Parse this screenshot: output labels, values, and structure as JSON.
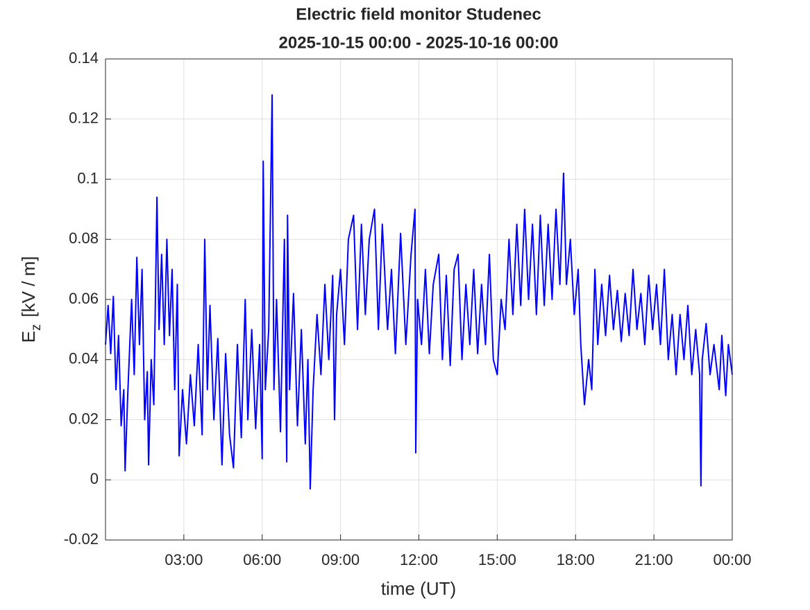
{
  "chart_data": {
    "type": "line",
    "title": [
      "Electric field monitor Studenec",
      "2025-10-15 00:00 - 2025-10-16 00:00"
    ],
    "xlabel": "time (UT)",
    "ylabel": {
      "base": "E",
      "subscript": "z",
      "rest": "[kV / m]"
    },
    "xlim": [
      0,
      24
    ],
    "xticks": [
      {
        "value": 3,
        "label": "03:00"
      },
      {
        "value": 6,
        "label": "06:00"
      },
      {
        "value": 9,
        "label": "09:00"
      },
      {
        "value": 12,
        "label": "12:00"
      },
      {
        "value": 15,
        "label": "15:00"
      },
      {
        "value": 18,
        "label": "18:00"
      },
      {
        "value": 21,
        "label": "21:00"
      },
      {
        "value": 24,
        "label": "00:00"
      }
    ],
    "ylim": [
      -0.02,
      0.14
    ],
    "yticks": [
      -0.02,
      0,
      0.02,
      0.04,
      0.06,
      0.08,
      0.1,
      0.12,
      0.14
    ],
    "grid": true,
    "x": [
      0,
      0.1,
      0.2,
      0.3,
      0.4,
      0.5,
      0.6,
      0.7,
      0.75,
      0.85,
      1.0,
      1.1,
      1.2,
      1.3,
      1.4,
      1.5,
      1.6,
      1.65,
      1.75,
      1.85,
      1.97,
      2.05,
      2.15,
      2.25,
      2.35,
      2.45,
      2.55,
      2.65,
      2.75,
      2.82,
      2.95,
      3.1,
      3.25,
      3.4,
      3.55,
      3.7,
      3.8,
      3.9,
      4.0,
      4.15,
      4.3,
      4.46,
      4.6,
      4.75,
      4.9,
      5.05,
      5.2,
      5.35,
      5.45,
      5.6,
      5.75,
      5.9,
      6.0,
      6.04,
      6.12,
      6.25,
      6.38,
      6.45,
      6.55,
      6.7,
      6.85,
      6.94,
      6.97,
      7.05,
      7.2,
      7.35,
      7.5,
      7.65,
      7.75,
      7.84,
      7.95,
      8.1,
      8.25,
      8.4,
      8.55,
      8.7,
      8.77,
      8.85,
      9.0,
      9.15,
      9.3,
      9.5,
      9.65,
      9.8,
      9.95,
      10.1,
      10.3,
      10.45,
      10.6,
      10.8,
      10.95,
      11.1,
      11.3,
      11.5,
      11.7,
      11.85,
      11.88,
      11.95,
      12.1,
      12.25,
      12.4,
      12.55,
      12.76,
      12.9,
      13.05,
      13.2,
      13.35,
      13.5,
      13.65,
      13.8,
      13.95,
      14.1,
      14.25,
      14.4,
      14.55,
      14.7,
      14.85,
      15.0,
      15.15,
      15.3,
      15.45,
      15.6,
      15.75,
      15.9,
      16.05,
      16.2,
      16.35,
      16.5,
      16.65,
      16.8,
      16.95,
      17.1,
      17.25,
      17.4,
      17.54,
      17.65,
      17.8,
      17.95,
      18.1,
      18.2,
      18.34,
      18.5,
      18.62,
      18.74,
      18.85,
      19.0,
      19.15,
      19.3,
      19.45,
      19.6,
      19.75,
      19.9,
      20.05,
      20.2,
      20.35,
      20.5,
      20.65,
      20.8,
      20.95,
      21.1,
      21.25,
      21.4,
      21.55,
      21.7,
      21.85,
      22.0,
      22.15,
      22.3,
      22.45,
      22.6,
      22.75,
      22.8,
      22.85,
      23.0,
      23.15,
      23.3,
      23.5,
      23.6,
      23.75,
      23.85,
      24.0
    ],
    "series": [
      {
        "color": "#0000ff",
        "values": [
          0.045,
          0.058,
          0.042,
          0.061,
          0.03,
          0.048,
          0.018,
          0.03,
          0.003,
          0.028,
          0.06,
          0.035,
          0.074,
          0.045,
          0.07,
          0.02,
          0.036,
          0.005,
          0.04,
          0.025,
          0.094,
          0.05,
          0.075,
          0.045,
          0.08,
          0.048,
          0.07,
          0.03,
          0.065,
          0.008,
          0.03,
          0.012,
          0.035,
          0.018,
          0.045,
          0.015,
          0.08,
          0.03,
          0.058,
          0.02,
          0.047,
          0.005,
          0.042,
          0.015,
          0.004,
          0.045,
          0.014,
          0.06,
          0.02,
          0.05,
          0.017,
          0.045,
          0.007,
          0.106,
          0.03,
          0.05,
          0.128,
          0.03,
          0.06,
          0.016,
          0.08,
          0.006,
          0.088,
          0.03,
          0.062,
          0.018,
          0.05,
          0.012,
          0.04,
          -0.003,
          0.03,
          0.055,
          0.035,
          0.065,
          0.04,
          0.068,
          0.02,
          0.055,
          0.07,
          0.045,
          0.08,
          0.088,
          0.05,
          0.085,
          0.055,
          0.08,
          0.09,
          0.05,
          0.085,
          0.05,
          0.07,
          0.042,
          0.082,
          0.045,
          0.075,
          0.09,
          0.009,
          0.06,
          0.045,
          0.07,
          0.042,
          0.065,
          0.075,
          0.04,
          0.068,
          0.038,
          0.07,
          0.075,
          0.04,
          0.065,
          0.045,
          0.07,
          0.042,
          0.065,
          0.045,
          0.075,
          0.04,
          0.035,
          0.06,
          0.05,
          0.08,
          0.055,
          0.085,
          0.058,
          0.09,
          0.06,
          0.085,
          0.055,
          0.088,
          0.058,
          0.085,
          0.06,
          0.09,
          0.065,
          0.102,
          0.065,
          0.08,
          0.055,
          0.07,
          0.045,
          0.025,
          0.04,
          0.03,
          0.07,
          0.045,
          0.065,
          0.048,
          0.068,
          0.05,
          0.063,
          0.046,
          0.062,
          0.048,
          0.07,
          0.05,
          0.062,
          0.045,
          0.068,
          0.05,
          0.065,
          0.045,
          0.07,
          0.04,
          0.055,
          0.035,
          0.055,
          0.04,
          0.058,
          0.035,
          0.05,
          0.035,
          -0.002,
          0.04,
          0.052,
          0.035,
          0.045,
          0.03,
          0.048,
          0.028,
          0.045,
          0.035
        ]
      }
    ]
  }
}
